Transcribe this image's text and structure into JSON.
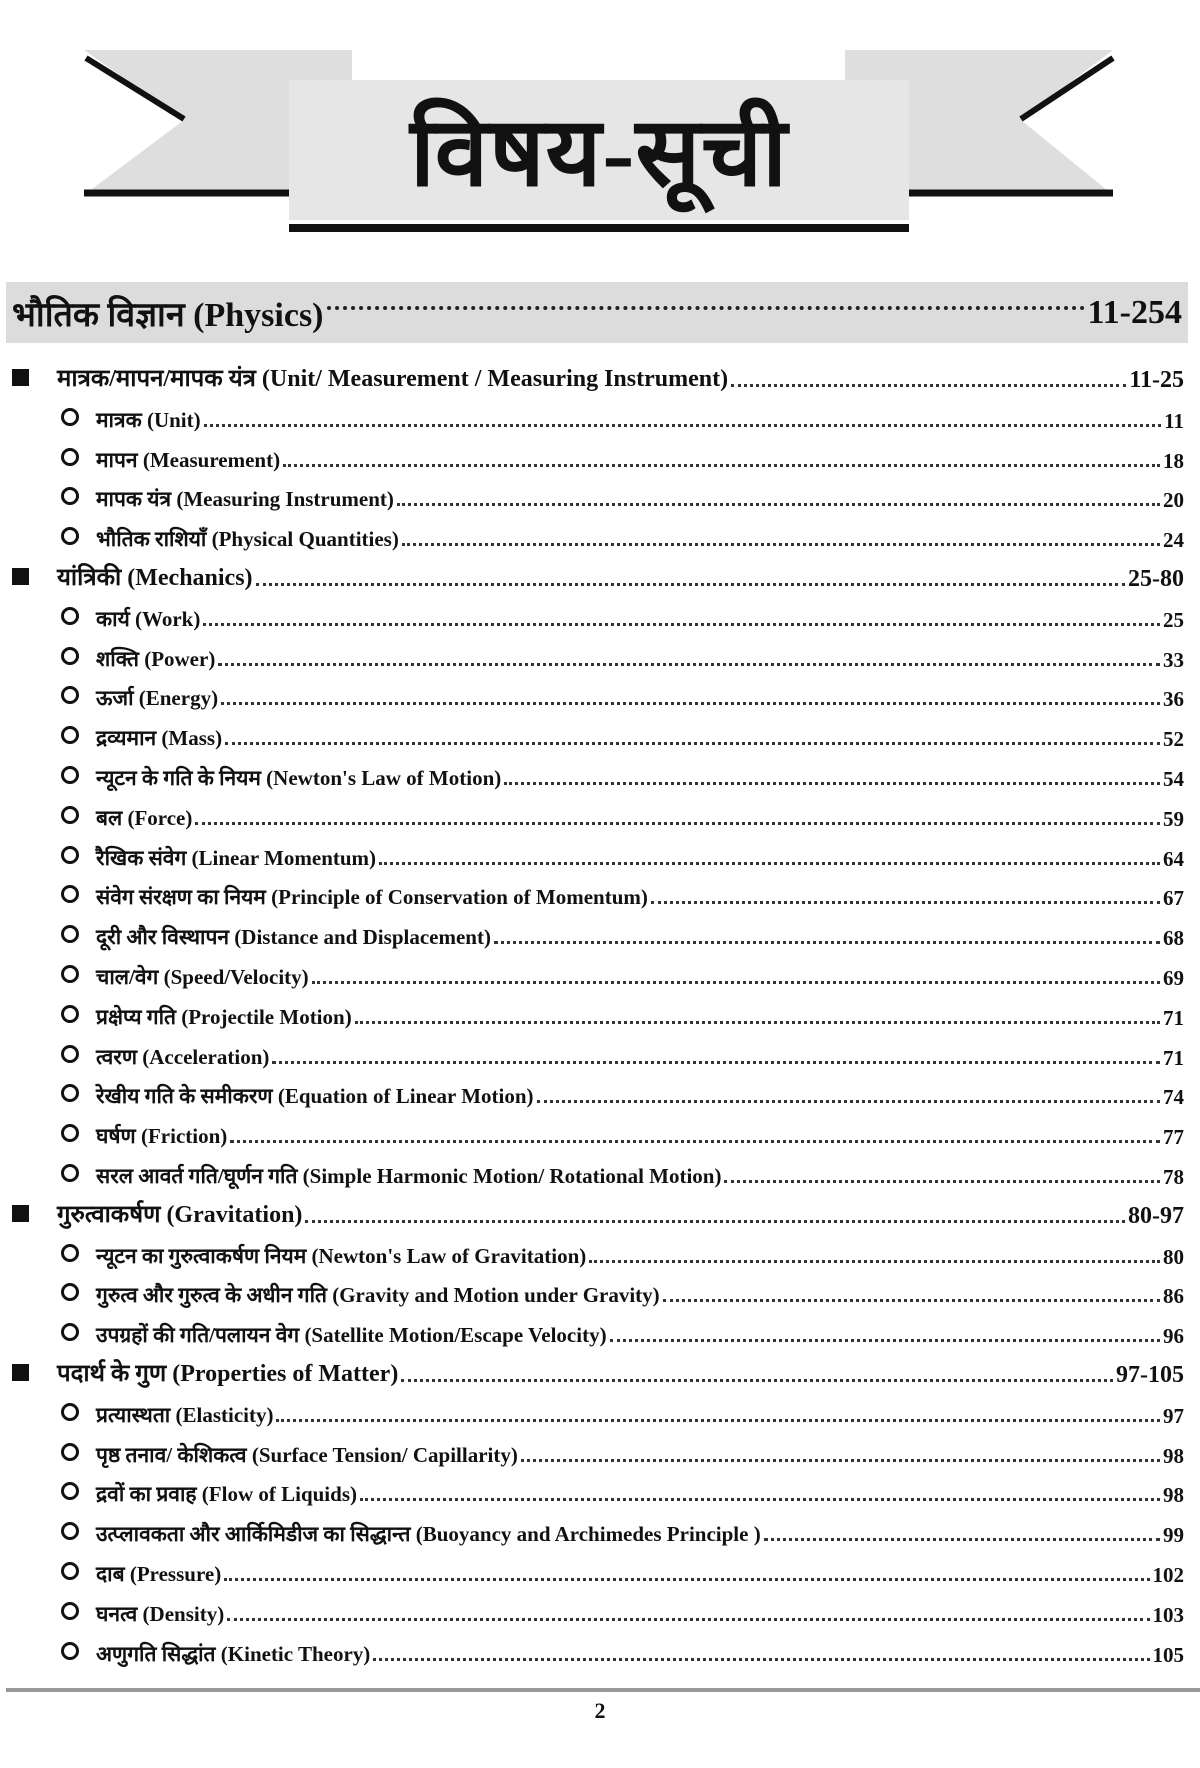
{
  "header": {
    "title": "विषय-सूची"
  },
  "part": {
    "label": "भौतिक विज्ञान (Physics)",
    "pages": "11-254"
  },
  "rows": [
    {
      "type": "sec",
      "label": "मात्रक/मापन/मापक यंत्र (Unit/ Measurement / Measuring Instrument)",
      "pages": "11-25"
    },
    {
      "type": "sub",
      "label": "मात्रक (Unit)",
      "pages": "11"
    },
    {
      "type": "sub",
      "label": "मापन (Measurement)",
      "pages": "18"
    },
    {
      "type": "sub",
      "label": "मापक यंत्र (Measuring Instrument)",
      "pages": "20"
    },
    {
      "type": "sub",
      "label": "भौतिक राशियाँ (Physical Quantities)",
      "pages": "24"
    },
    {
      "type": "sec",
      "label": "यांत्रिकी (Mechanics)",
      "pages": "25-80"
    },
    {
      "type": "sub",
      "label": "कार्य (Work)",
      "pages": "25"
    },
    {
      "type": "sub",
      "label": "शक्ति (Power)",
      "pages": "33"
    },
    {
      "type": "sub",
      "label": "ऊर्जा (Energy)",
      "pages": "36"
    },
    {
      "type": "sub",
      "label": "द्रव्यमान (Mass)",
      "pages": "52"
    },
    {
      "type": "sub",
      "label": "न्यूटन के गति के नियम (Newton's Law of Motion)",
      "pages": "54"
    },
    {
      "type": "sub",
      "label": "बल (Force)",
      "pages": "59"
    },
    {
      "type": "sub",
      "label": "रैखिक संवेग (Linear Momentum)",
      "pages": "64"
    },
    {
      "type": "sub",
      "label": "संवेग संरक्षण का नियम (Principle of Conservation of Momentum)",
      "pages": "67"
    },
    {
      "type": "sub",
      "label": "दूरी और विस्थापन (Distance and Displacement)",
      "pages": "68"
    },
    {
      "type": "sub",
      "label": "चाल/वेग (Speed/Velocity)",
      "pages": "69"
    },
    {
      "type": "sub",
      "label": "प्रक्षेप्य गति (Projectile Motion)",
      "pages": "71"
    },
    {
      "type": "sub",
      "label": "त्वरण (Acceleration)",
      "pages": "71"
    },
    {
      "type": "sub",
      "label": "रेखीय गति के समीकरण (Equation of Linear Motion)",
      "pages": "74"
    },
    {
      "type": "sub",
      "label": "घर्षण (Friction)",
      "pages": "77"
    },
    {
      "type": "sub",
      "label": "सरल आवर्त गति/घूर्णन गति (Simple Harmonic Motion/ Rotational Motion)",
      "pages": "78"
    },
    {
      "type": "sec",
      "label": "गुरुत्वाकर्षण (Gravitation)",
      "pages": "80-97"
    },
    {
      "type": "sub",
      "label": "न्यूटन का गुरुत्वाकर्षण नियम (Newton's Law of Gravitation)",
      "pages": "80"
    },
    {
      "type": "sub",
      "label": "गुरुत्व और गुरुत्व के अधीन गति (Gravity and Motion under Gravity)",
      "pages": "86"
    },
    {
      "type": "sub",
      "label": "उपग्रहों की गति/पलायन वेग (Satellite Motion/Escape Velocity)",
      "pages": "96"
    },
    {
      "type": "sec",
      "label": "पदार्थ के गुण (Properties of Matter)",
      "pages": "97-105"
    },
    {
      "type": "sub",
      "label": "प्रत्यास्थता (Elasticity)",
      "pages": "97"
    },
    {
      "type": "sub",
      "label": "पृष्ठ तनाव/ केशिकत्व (Surface Tension/ Capillarity)",
      "pages": "98"
    },
    {
      "type": "sub",
      "label": "द्रवों का प्रवाह (Flow of Liquids)",
      "pages": "98"
    },
    {
      "type": "sub",
      "label": "उत्प्लावकता और आर्किमिडीज का सिद्धान्त (Buoyancy and Archimedes Principle )",
      "pages": "99"
    },
    {
      "type": "sub",
      "label": "दाब (Pressure)",
      "pages": "102"
    },
    {
      "type": "sub",
      "label": "घनत्व (Density)",
      "pages": "103"
    },
    {
      "type": "sub",
      "label": "अणुगति सिद्धांत (Kinetic Theory)",
      "pages": "105"
    }
  ],
  "footer": {
    "page_number": "2"
  }
}
